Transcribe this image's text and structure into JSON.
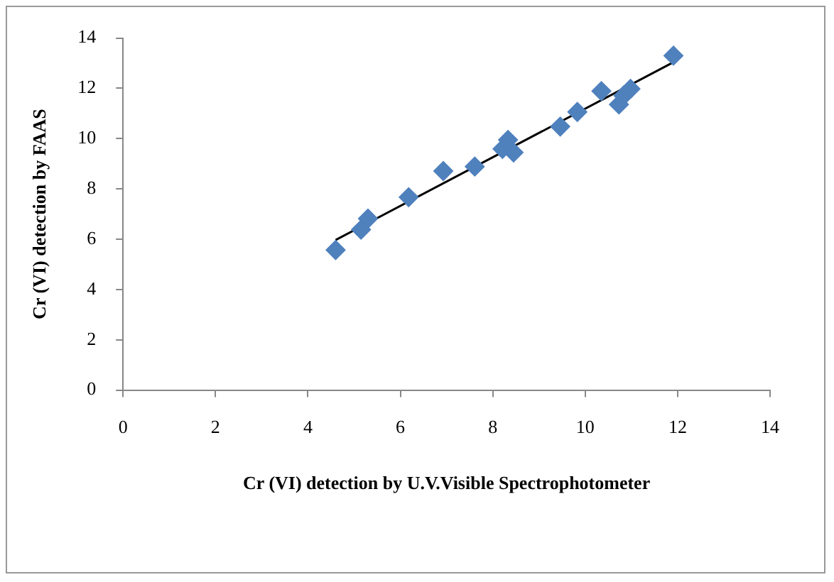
{
  "chart_data": {
    "type": "scatter",
    "xlabel": "Cr (VI) detection by U.V.Visible Spectrophotometer",
    "ylabel": "Cr (VI) detection by FAAS",
    "xlim": [
      0,
      14
    ],
    "ylim": [
      0,
      14
    ],
    "xticks": [
      0,
      2,
      4,
      6,
      8,
      10,
      12,
      14
    ],
    "yticks": [
      0,
      2,
      4,
      6,
      8,
      10,
      12,
      14
    ],
    "grid": false,
    "legend": false,
    "marker": "diamond",
    "series": [
      {
        "color": "#4f81bd",
        "x": [
          4.6,
          5.15,
          5.3,
          6.18,
          6.93,
          7.61,
          8.21,
          8.33,
          8.45,
          9.46,
          9.83,
          10.35,
          10.73,
          10.83,
          10.98,
          11.91
        ],
        "values": [
          5.57,
          6.38,
          6.82,
          7.67,
          8.71,
          8.89,
          9.59,
          9.95,
          9.45,
          10.48,
          11.06,
          11.89,
          11.36,
          11.71,
          11.98,
          13.3
        ]
      },
      {
        "type": "line",
        "color": "#000000",
        "marker": "none",
        "x": [
          4.6,
          11.91
        ],
        "values": [
          5.97,
          13.04
        ]
      }
    ]
  }
}
